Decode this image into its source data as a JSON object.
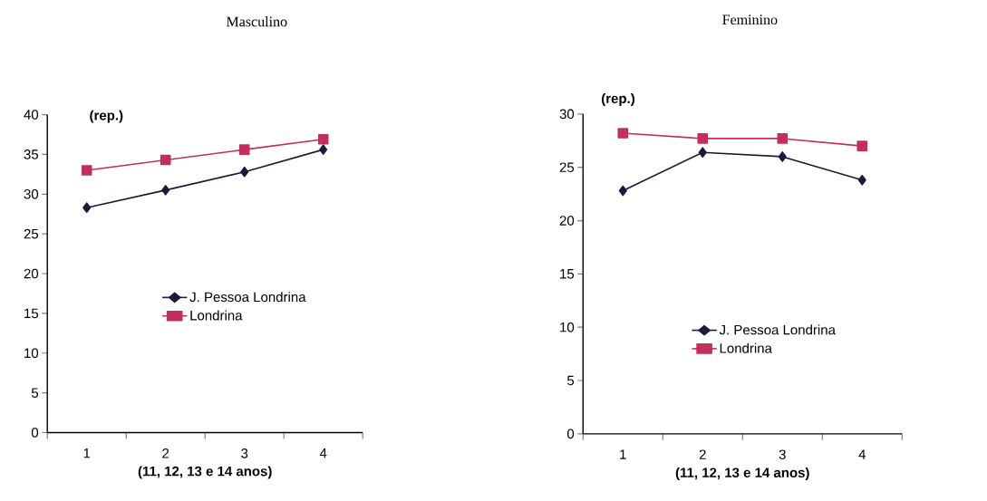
{
  "chart_data": [
    {
      "type": "line",
      "title": "Masculino",
      "xlabel": "(11, 12, 13 e 14 anos)",
      "ylabel": "(rep.)",
      "categories": [
        "1",
        "2",
        "3",
        "4"
      ],
      "series": [
        {
          "name": "J. Pessoa Londrina",
          "color": "#1a1a3a",
          "marker": "diamond",
          "values": [
            28.3,
            30.5,
            32.8,
            35.6
          ]
        },
        {
          "name": "Londrina",
          "color": "#c0305a",
          "marker": "square",
          "values": [
            33.0,
            34.3,
            35.6,
            36.9
          ]
        }
      ],
      "ylim": [
        0,
        40
      ],
      "yticks": [
        0,
        5,
        10,
        15,
        20,
        25,
        30,
        35,
        40
      ],
      "grid": false,
      "legend": "right"
    },
    {
      "type": "line",
      "title": "Feminino",
      "xlabel": "(11, 12, 13 e 14 anos)",
      "ylabel": "(rep.)",
      "categories": [
        "1",
        "2",
        "3",
        "4"
      ],
      "series": [
        {
          "name": "J. Pessoa Londrina",
          "color": "#1a1a3a",
          "marker": "diamond",
          "values": [
            22.8,
            26.4,
            26.0,
            23.8
          ]
        },
        {
          "name": "Londrina",
          "color": "#c0305a",
          "marker": "square",
          "values": [
            28.2,
            27.7,
            27.7,
            27.0
          ]
        }
      ],
      "ylim": [
        0,
        30
      ],
      "yticks": [
        0,
        5,
        10,
        15,
        20,
        25,
        30
      ],
      "grid": false,
      "legend": "bottom right"
    }
  ]
}
